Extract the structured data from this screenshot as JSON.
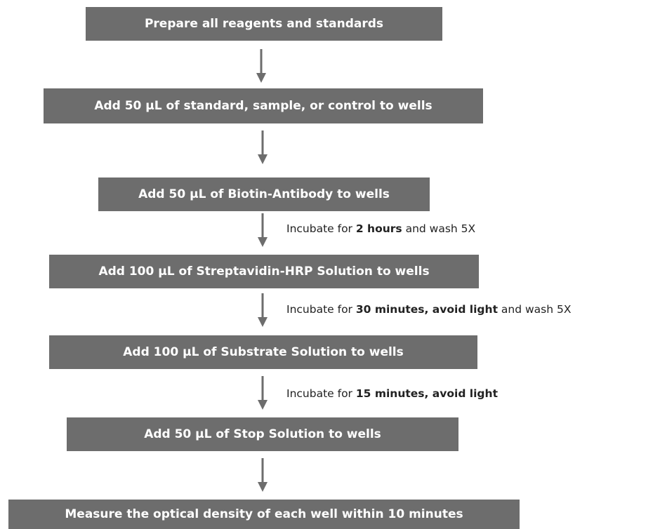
{
  "steps": [
    {
      "label": "Prepare all reagents and standards"
    },
    {
      "label": "Add 50 µL of standard, sample, or control to wells"
    },
    {
      "label": "Add 50 µL of Biotin-Antibody to wells"
    },
    {
      "label": "Add 100 µL of Streptavidin-HRP Solution to wells"
    },
    {
      "label": "Add 100 µL of Substrate Solution to wells"
    },
    {
      "label": "Add 50 µL of Stop Solution to wells"
    },
    {
      "label": "Measure the optical density of each well within 10 minutes"
    }
  ],
  "notes": [
    {
      "prefix": "Incubate for ",
      "bold": "2 hours",
      "suffix": " and wash 5X"
    },
    {
      "prefix": "Incubate for ",
      "bold": "30 minutes, avoid light",
      "suffix": " and wash 5X"
    },
    {
      "prefix": "Incubate for ",
      "bold": "15 minutes, avoid light",
      "suffix": ""
    }
  ],
  "colors": {
    "box": "#6d6d6d",
    "box_text": "#ffffff",
    "arrow": "#6d6d6d",
    "note_text": "#222222"
  }
}
